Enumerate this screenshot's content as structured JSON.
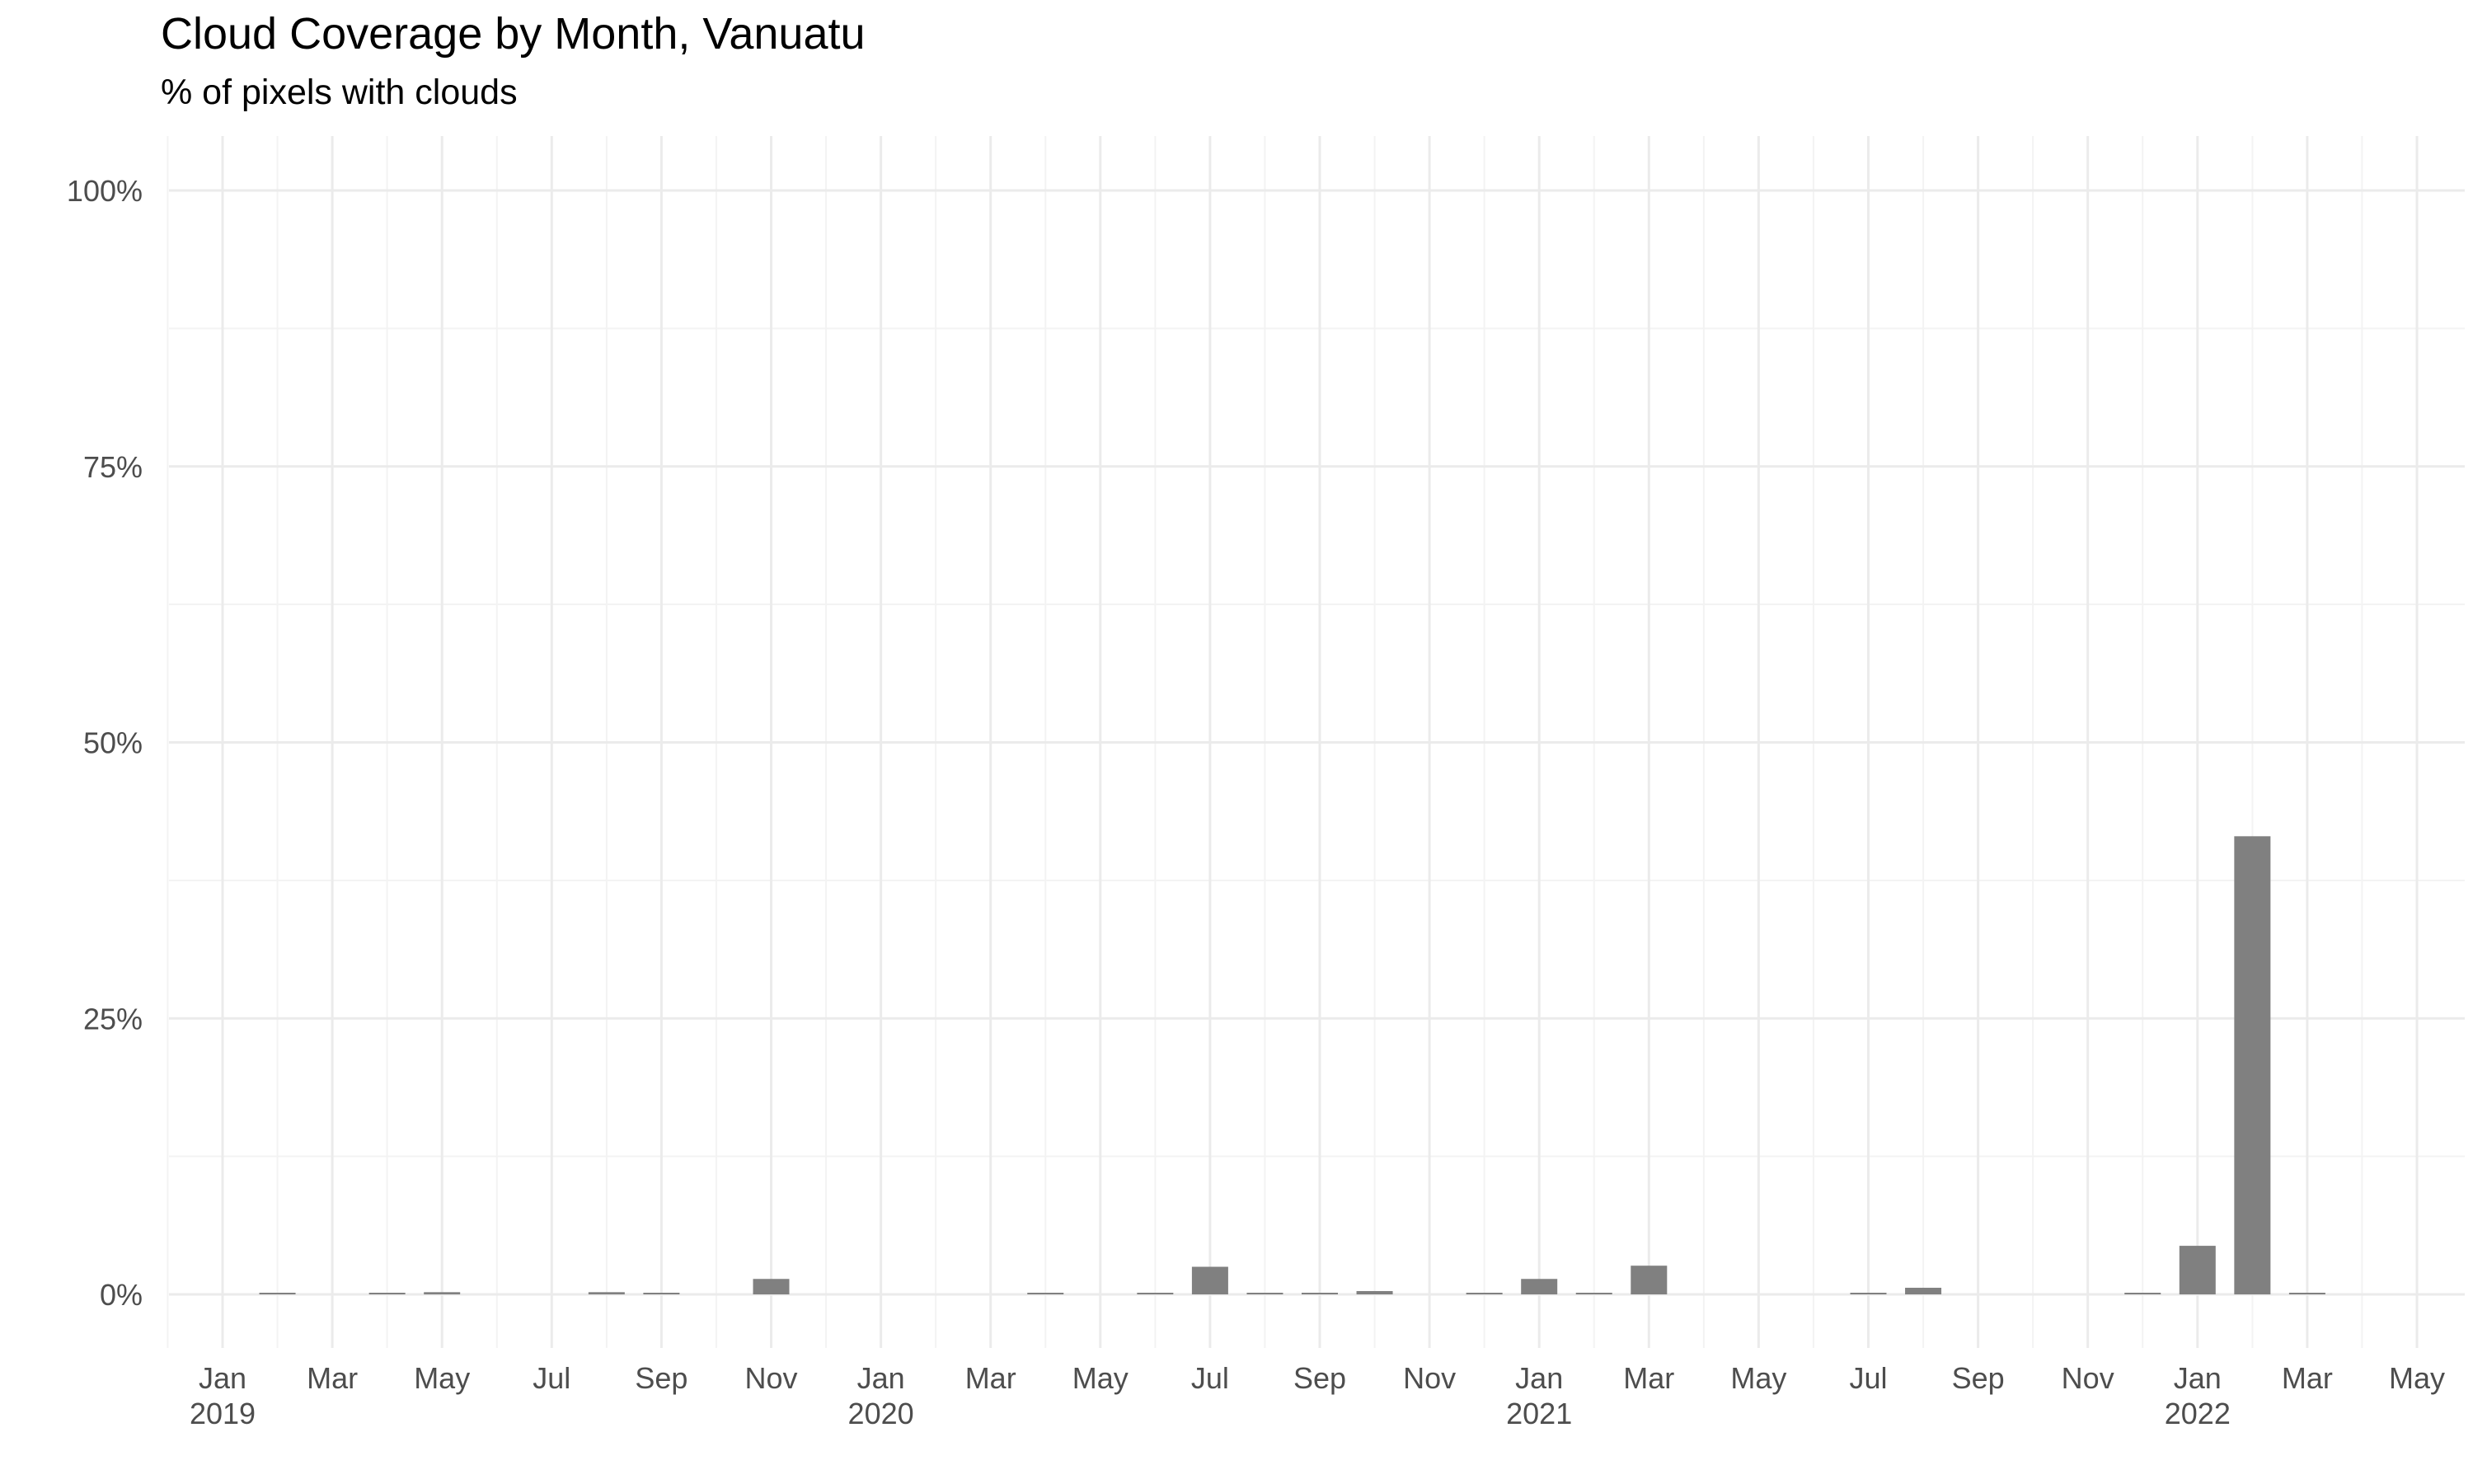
{
  "title": "Cloud Coverage by Month, Vanuatu",
  "subtitle": "% of pixels with clouds",
  "chart_data": {
    "type": "bar",
    "title": "Cloud Coverage by Month, Vanuatu",
    "subtitle": "% of pixels with clouds",
    "xlabel": "",
    "ylabel": "",
    "ylim": [
      0,
      100
    ],
    "yticks": [
      "0%",
      "25%",
      "50%",
      "75%",
      "100%"
    ],
    "xticks": [
      [
        "Jan",
        "2019"
      ],
      [
        "Mar",
        ""
      ],
      [
        "May",
        ""
      ],
      [
        "Jul",
        ""
      ],
      [
        "Sep",
        ""
      ],
      [
        "Nov",
        ""
      ],
      [
        "Jan",
        "2020"
      ],
      [
        "Mar",
        ""
      ],
      [
        "May",
        ""
      ],
      [
        "Jul",
        ""
      ],
      [
        "Sep",
        ""
      ],
      [
        "Nov",
        ""
      ],
      [
        "Jan",
        "2021"
      ],
      [
        "Mar",
        ""
      ],
      [
        "May",
        ""
      ],
      [
        "Jul",
        ""
      ],
      [
        "Sep",
        ""
      ],
      [
        "Nov",
        ""
      ],
      [
        "Jan",
        "2022"
      ],
      [
        "Mar",
        ""
      ],
      [
        "May",
        ""
      ]
    ],
    "bar_color": "#808080",
    "grid": true,
    "categories": [
      "2019-01",
      "2019-02",
      "2019-03",
      "2019-04",
      "2019-05",
      "2019-06",
      "2019-07",
      "2019-08",
      "2019-09",
      "2019-10",
      "2019-11",
      "2019-12",
      "2020-01",
      "2020-02",
      "2020-03",
      "2020-04",
      "2020-05",
      "2020-06",
      "2020-07",
      "2020-08",
      "2020-09",
      "2020-10",
      "2020-11",
      "2020-12",
      "2021-01",
      "2021-02",
      "2021-03",
      "2021-04",
      "2021-05",
      "2021-06",
      "2021-07",
      "2021-08",
      "2021-09",
      "2021-10",
      "2021-11",
      "2021-12",
      "2022-01",
      "2022-02",
      "2022-03",
      "2022-04",
      "2022-05"
    ],
    "values": [
      0,
      0.1,
      0,
      0.1,
      0.2,
      0,
      0,
      0.2,
      0.1,
      0,
      1.4,
      0,
      0,
      0,
      0,
      0.1,
      0,
      0.1,
      2.5,
      0.1,
      0.1,
      0.3,
      0,
      0.1,
      1.4,
      0.1,
      2.6,
      0,
      0,
      0,
      0.1,
      0.6,
      0,
      0,
      0,
      0.1,
      4.4,
      41.5,
      0.1,
      0,
      0
    ]
  }
}
